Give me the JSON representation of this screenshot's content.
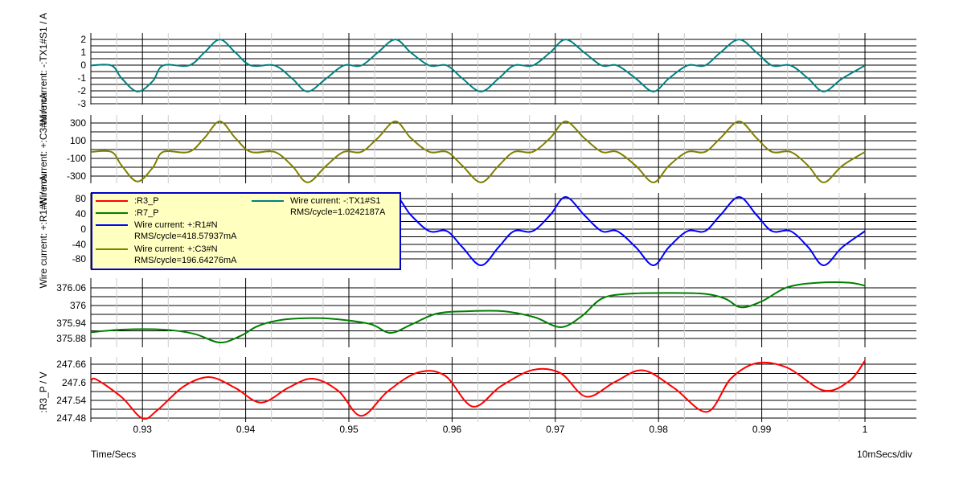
{
  "footer": {
    "x_label": "Time/Secs",
    "scale": "10mSecs/div"
  },
  "legend": [
    {
      "label": ":R3_P",
      "color": "#ff0000",
      "rms": ""
    },
    {
      "label": ":R7_P",
      "color": "#008000",
      "rms": ""
    },
    {
      "label": "Wire current: +:R1#N",
      "color": "#0000ff",
      "rms": "RMS/cycle=418.57937mA"
    },
    {
      "label": "Wire current: +:C3#N",
      "color": "#808000",
      "rms": "RMS/cycle=196.64276mA"
    },
    {
      "label": "Wire current: -:TX1#S1",
      "color": "#008080",
      "rms": "RMS/cycle=1.0242187A"
    }
  ],
  "chart_data": [
    {
      "type": "line",
      "ylabel": "Wire current: -:TX1#S1 / A",
      "ylim": [
        -3,
        2.5
      ],
      "yticks": [
        "2",
        "1",
        "0",
        "-1",
        "-2",
        "-3"
      ],
      "series": [
        {
          "name": "Wire current: -:TX1#S1",
          "color": "#008080",
          "x": [
            0.925,
            0.927,
            0.928,
            0.9295,
            0.931,
            0.932,
            0.9345,
            0.936,
            0.9375,
            0.939,
            0.9405,
            0.9428,
            0.9445,
            0.946,
            0.9478,
            0.9495,
            0.9512,
            0.9528,
            0.9545,
            0.956,
            0.9578,
            0.9595,
            0.961,
            0.9628,
            0.9645,
            0.966,
            0.9678,
            0.9695,
            0.971,
            0.9728,
            0.9745,
            0.976,
            0.9778,
            0.9795,
            0.981,
            0.9828,
            0.9845,
            0.986,
            0.9878,
            0.9895,
            0.991,
            0.9928,
            0.9945,
            0.996,
            0.9978,
            1.0
          ],
          "y": [
            0,
            0,
            -1,
            -2,
            -1.2,
            0,
            0,
            1,
            2,
            1,
            0,
            0,
            -1,
            -2,
            -1,
            0,
            0,
            1,
            2,
            1,
            0,
            0,
            -1,
            -2,
            -1,
            0,
            0,
            1,
            2,
            1,
            0,
            0,
            -1,
            -2,
            -1,
            0,
            0,
            1,
            2,
            1,
            0,
            0,
            -1,
            -2,
            -1,
            0
          ]
        }
      ]
    },
    {
      "type": "line",
      "ylabel": "Wire current: +:C3#N / mA",
      "ylim": [
        -340,
        400
      ],
      "yticks": [
        "300",
        "100",
        "-100",
        "-300"
      ],
      "series": [
        {
          "name": "Wire current: +:C3#N",
          "color": "#808000",
          "x": [
            0.925,
            0.927,
            0.928,
            0.9295,
            0.931,
            0.932,
            0.9345,
            0.936,
            0.9375,
            0.939,
            0.9405,
            0.9428,
            0.9445,
            0.946,
            0.9478,
            0.9495,
            0.9512,
            0.9528,
            0.9545,
            0.956,
            0.9578,
            0.9595,
            0.961,
            0.9628,
            0.9645,
            0.966,
            0.9678,
            0.9695,
            0.971,
            0.9728,
            0.9745,
            0.976,
            0.9778,
            0.9795,
            0.981,
            0.9828,
            0.9845,
            0.986,
            0.9878,
            0.9895,
            0.991,
            0.9928,
            0.9945,
            0.996,
            0.9978,
            1.0
          ],
          "y": [
            0,
            0,
            -150,
            -320,
            -170,
            0,
            0,
            150,
            330,
            150,
            0,
            0,
            -150,
            -330,
            -150,
            0,
            0,
            150,
            330,
            150,
            0,
            0,
            -150,
            -330,
            -150,
            0,
            0,
            150,
            330,
            150,
            0,
            0,
            -150,
            -330,
            -150,
            0,
            0,
            150,
            330,
            150,
            0,
            0,
            -150,
            -330,
            -150,
            0
          ]
        }
      ]
    },
    {
      "type": "line",
      "ylabel": "Wire current: +:R1#N / mA",
      "ylim": [
        -95,
        95
      ],
      "yticks": [
        "80",
        "40",
        "0",
        "-40",
        "-80"
      ],
      "series": [
        {
          "name": "Wire current: +:R1#N",
          "color": "#0000ff",
          "x": [
            0.925,
            0.927,
            0.928,
            0.9295,
            0.931,
            0.932,
            0.9345,
            0.936,
            0.9375,
            0.939,
            0.9405,
            0.9428,
            0.9445,
            0.946,
            0.9478,
            0.9495,
            0.9512,
            0.9528,
            0.9545,
            0.956,
            0.9578,
            0.9595,
            0.961,
            0.9628,
            0.9645,
            0.966,
            0.9678,
            0.9695,
            0.971,
            0.9728,
            0.9745,
            0.976,
            0.9778,
            0.9795,
            0.981,
            0.9828,
            0.9845,
            0.986,
            0.9878,
            0.9895,
            0.991,
            0.9928,
            0.9945,
            0.996,
            0.9978,
            1.0
          ],
          "y": [
            0,
            0,
            -40,
            -85,
            -45,
            0,
            0,
            40,
            85,
            40,
            0,
            0,
            -40,
            -85,
            -40,
            0,
            0,
            40,
            85,
            40,
            0,
            0,
            -40,
            -85,
            -40,
            0,
            0,
            40,
            85,
            40,
            0,
            0,
            -40,
            -85,
            -40,
            0,
            0,
            40,
            85,
            40,
            0,
            0,
            -40,
            -85,
            -40,
            0
          ]
        }
      ]
    },
    {
      "type": "line",
      "ylabel": "",
      "ylim": [
        375.87,
        376.1
      ],
      "yticks": [
        "376.06",
        "376",
        "375.94",
        "375.88"
      ],
      "series": [
        {
          "name": ":R7_P",
          "color": "#008000",
          "x": [
            0.925,
            0.928,
            0.932,
            0.935,
            0.9375,
            0.9395,
            0.941,
            0.9425,
            0.9445,
            0.948,
            0.952,
            0.954,
            0.956,
            0.9585,
            0.9615,
            0.965,
            0.968,
            0.9705,
            0.9725,
            0.9745,
            0.977,
            0.981,
            0.9845,
            0.9865,
            0.988,
            0.99,
            0.9925,
            0.9955,
            0.9985,
            1.0
          ],
          "y": [
            375.92,
            375.929,
            375.929,
            375.915,
            375.886,
            375.908,
            375.938,
            375.955,
            375.965,
            375.966,
            375.948,
            375.918,
            375.945,
            375.982,
            375.99,
            375.99,
            375.97,
            375.937,
            375.972,
            376.032,
            376.048,
            376.051,
            376.048,
            376.031,
            376.003,
            376.023,
            376.07,
            376.085,
            376.085,
            376.075
          ]
        }
      ]
    },
    {
      "type": "line",
      "ylabel": ":R3_P / V",
      "ylim": [
        247.47,
        247.68
      ],
      "yticks": [
        "247.66",
        "247.6",
        "247.54",
        "247.48"
      ],
      "series": [
        {
          "name": ":R3_P",
          "color": "#ff0000",
          "x": [
            0.925,
            0.9255,
            0.928,
            0.93,
            0.9315,
            0.934,
            0.9365,
            0.939,
            0.9415,
            0.9442,
            0.9465,
            0.949,
            0.9512,
            0.9538,
            0.9567,
            0.9593,
            0.962,
            0.9647,
            0.9678,
            0.9705,
            0.973,
            0.9758,
            0.9785,
            0.9815,
            0.9847,
            0.987,
            0.9895,
            0.9925,
            0.996,
            0.9985,
            1.0
          ],
          "y": [
            247.6,
            247.608,
            247.55,
            247.482,
            247.51,
            247.585,
            247.615,
            247.58,
            247.533,
            247.582,
            247.61,
            247.57,
            247.49,
            247.57,
            247.63,
            247.62,
            247.52,
            247.585,
            247.638,
            247.628,
            247.552,
            247.6,
            247.637,
            247.58,
            247.503,
            247.61,
            247.66,
            247.645,
            247.572,
            247.603,
            247.668
          ]
        }
      ]
    }
  ],
  "x_axis": {
    "ticks": [
      "0.93",
      "0.94",
      "0.95",
      "0.96",
      "0.97",
      "0.98",
      "0.99",
      "1"
    ],
    "xlim": [
      0.925,
      1.0
    ]
  }
}
